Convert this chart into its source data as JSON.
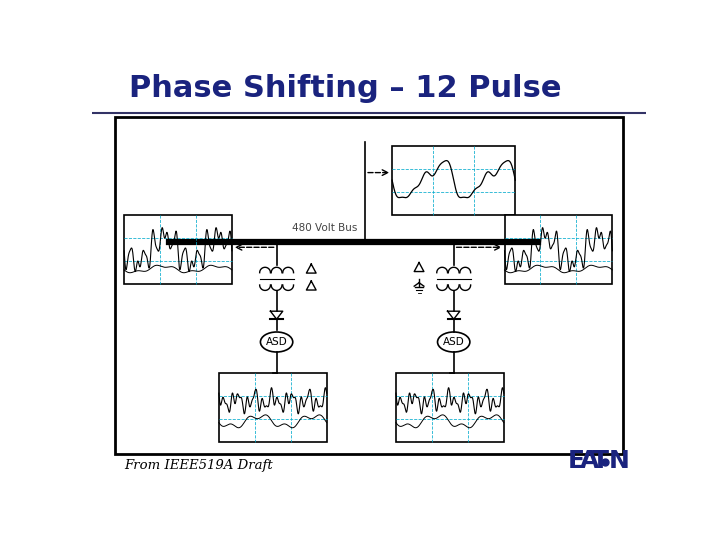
{
  "title": "Phase Shifting – 12 Pulse",
  "title_color": "#1a237e",
  "title_fontsize": 22,
  "bg_color": "#ffffff",
  "footer_text": "From IEEE519A Draft",
  "bus_label": "480 Volt Bus",
  "asd_label": "ASD",
  "line_color": "#000000",
  "wave_color": "#000000",
  "grid_color": "#00aacc",
  "box_border": "#000000",
  "underline_color": "#333366"
}
